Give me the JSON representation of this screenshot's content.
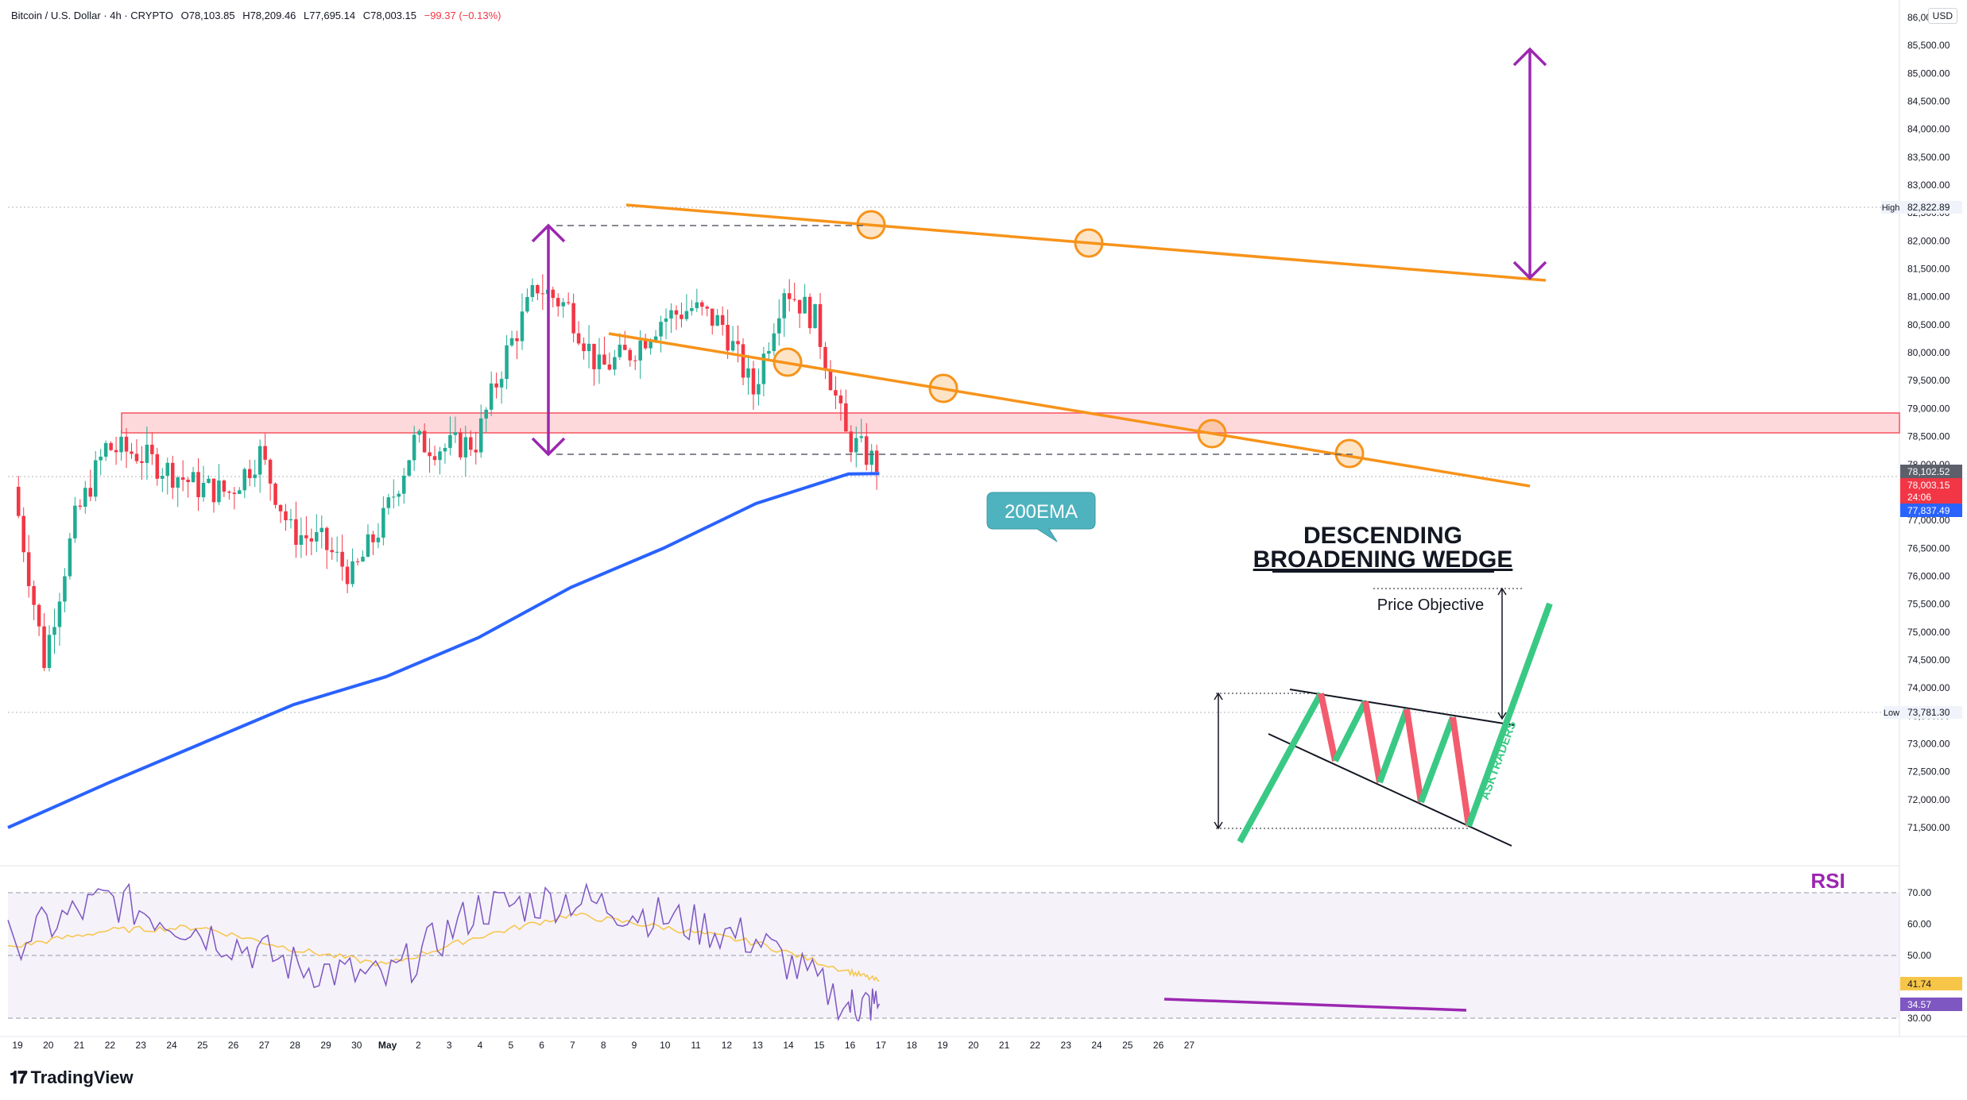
{
  "legend": {
    "symbol": "Bitcoin / U.S. Dollar · 4h · CRYPTO",
    "open": "O78,103.85",
    "high": "H78,209.46",
    "low": "L77,695.14",
    "close": "C78,003.15",
    "change": "−99.37 (−0.13%)"
  },
  "currency": "USD",
  "logo_text": "TradingView",
  "annotations": {
    "ema_label": "200EMA",
    "pattern_line1": "DESCENDING",
    "pattern_line2": "BROADENING WEDGE",
    "price_objective": "Price Objective",
    "askt": "ASKTRADERS",
    "rsi_title": "RSI"
  },
  "price_axis": {
    "ticks": [
      "86,000.00",
      "85,500.00",
      "85,000.00",
      "84,500.00",
      "84,000.00",
      "83,500.00",
      "83,000.00",
      "82,500.00",
      "82,000.00",
      "81,500.00",
      "81,000.00",
      "80,500.00",
      "80,000.00",
      "79,500.00",
      "79,000.00",
      "78,500.00",
      "78,000.00",
      "77,500.00",
      "77,000.00",
      "76,500.00",
      "76,000.00",
      "75,500.00",
      "75,000.00",
      "74,500.00",
      "74,000.00",
      "73,500.00",
      "73,000.00",
      "72,500.00",
      "72,000.00",
      "71,500.00"
    ],
    "high_tag": "High",
    "high_value": "82,822.89",
    "low_tag": "Low",
    "low_value": "73,781.30",
    "last_price": "78,102.52",
    "current_price": "78,003.15",
    "countdown": "24:06",
    "ema_value": "77,837.49"
  },
  "rsi_axis": {
    "ticks": [
      "70.00",
      "60.00",
      "50.00",
      "40.00",
      "30.00"
    ],
    "rsi_ma_value": "41.74",
    "rsi_value": "34.57"
  },
  "time_axis": {
    "labels": [
      "19",
      "20",
      "21",
      "22",
      "23",
      "24",
      "25",
      "26",
      "27",
      "28",
      "29",
      "30",
      "May",
      "2",
      "3",
      "4",
      "5",
      "6",
      "7",
      "8",
      "9",
      "10",
      "11",
      "12",
      "13",
      "14",
      "15",
      "16",
      "17",
      "18",
      "19",
      "20",
      "21",
      "22",
      "23",
      "24",
      "25",
      "26",
      "27"
    ]
  },
  "colors": {
    "up": "#22ab94",
    "down": "#f23645",
    "ema": "#2962ff",
    "trendline": "#f7931a",
    "arrow": "#9c27b0",
    "rsi_line": "#7e57c2",
    "rsi_ma": "#f7c548",
    "zone": "#f7525f"
  },
  "chart_data": {
    "type": "candlestick",
    "interval": "4h",
    "symbol": "BTCUSD",
    "ylim": [
      71000,
      86300
    ],
    "ema_label": "200EMA",
    "price_points": {
      "x": [
        "Apr 19",
        "Apr 20",
        "Apr 21",
        "Apr 22",
        "Apr 23",
        "Apr 24",
        "Apr 25",
        "Apr 26",
        "Apr 27",
        "Apr 28",
        "Apr 29",
        "Apr 30",
        "May 1",
        "May 2",
        "May 3",
        "May 4",
        "May 5",
        "May 6",
        "May 7",
        "May 8",
        "May 9",
        "May 10",
        "May 11",
        "May 12",
        "May 13",
        "May 14",
        "May 15",
        "May 16",
        "May 17"
      ],
      "close": [
        77600,
        74500,
        77000,
        78300,
        78200,
        77900,
        77600,
        77500,
        78200,
        76800,
        76600,
        76000,
        77000,
        78400,
        78300,
        78400,
        80000,
        81200,
        80800,
        79700,
        80000,
        80600,
        80800,
        80500,
        79300,
        81200,
        80600,
        78500,
        78003
      ]
    },
    "ema200": {
      "x": [
        "Apr 19",
        "Apr 22",
        "Apr 25",
        "Apr 28",
        "May 1",
        "May 4",
        "May 7",
        "May 10",
        "May 13",
        "May 16",
        "May 17"
      ],
      "values": [
        71500,
        72300,
        73000,
        73700,
        74200,
        74900,
        75800,
        76500,
        77300,
        77830,
        77837
      ]
    },
    "rsi": {
      "ylim": [
        30,
        70
      ],
      "x": [
        "Apr 19",
        "Apr 22",
        "Apr 25",
        "Apr 28",
        "May 1",
        "May 4",
        "May 7",
        "May 10",
        "May 13",
        "May 16",
        "May 17"
      ],
      "values": [
        55,
        68,
        58,
        47,
        42,
        65,
        68,
        62,
        55,
        34,
        34.57
      ],
      "ma": [
        53,
        58,
        59,
        52,
        47,
        56,
        63,
        59,
        54,
        45,
        41.74
      ]
    }
  }
}
